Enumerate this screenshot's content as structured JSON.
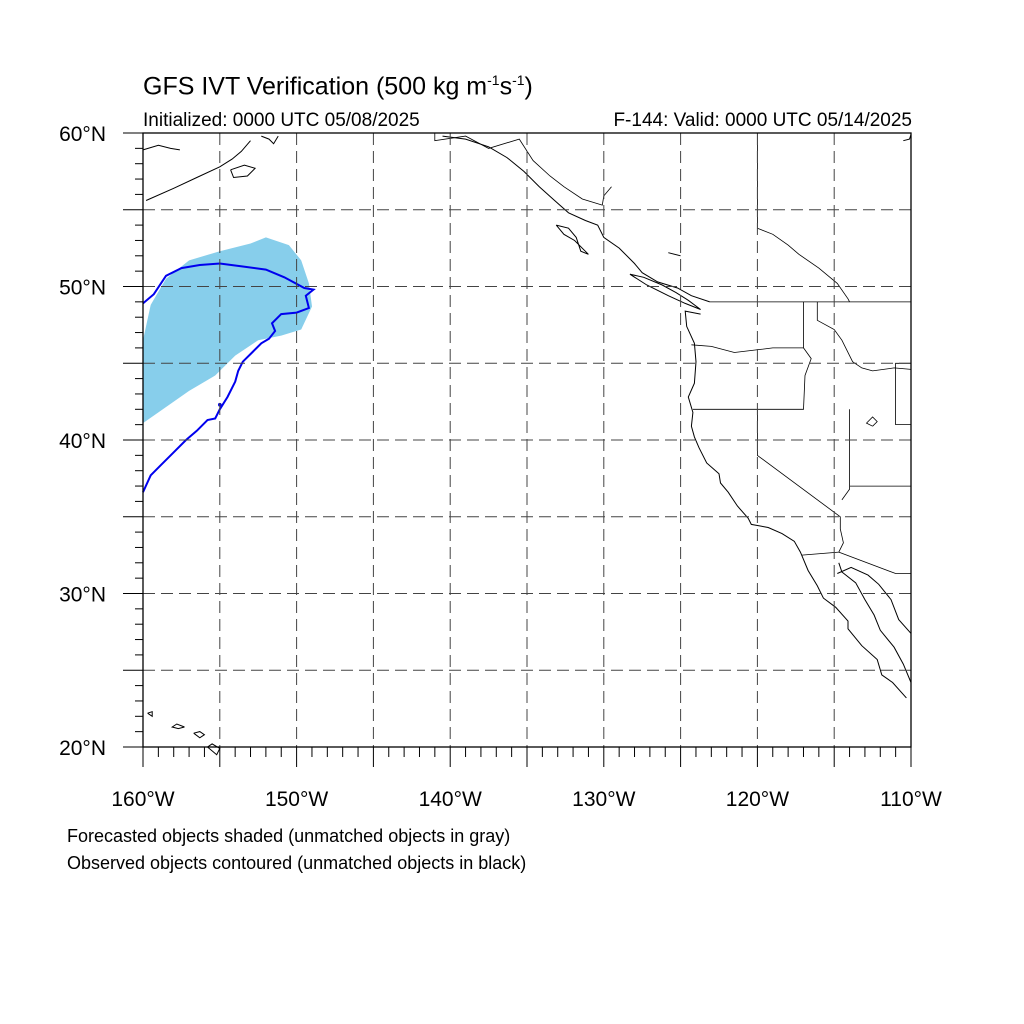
{
  "title": {
    "prefix": "GFS IVT Verification (500 kg m",
    "exp1": "-1",
    "mid": "s",
    "exp2": "-1",
    "suffix": ")"
  },
  "initialized": "Initialized: 0000 UTC 05/08/2025",
  "valid": "F-144: Valid: 0000 UTC 05/14/2025",
  "notes": [
    "Forecasted objects shaded (unmatched objects in gray)",
    "Observed objects contoured (unmatched objects in black)"
  ],
  "map": {
    "lon_range": [
      -160,
      -110
    ],
    "lat_range": [
      20,
      60
    ],
    "lon_labels": [
      {
        "lon": -160,
        "label": "160°W"
      },
      {
        "lon": -150,
        "label": "150°W"
      },
      {
        "lon": -140,
        "label": "140°W"
      },
      {
        "lon": -130,
        "label": "130°W"
      },
      {
        "lon": -120,
        "label": "120°W"
      },
      {
        "lon": -110,
        "label": "110°W"
      }
    ],
    "lat_labels": [
      {
        "lat": 60,
        "label": "60°N"
      },
      {
        "lat": 50,
        "label": "50°N"
      },
      {
        "lat": 40,
        "label": "40°N"
      },
      {
        "lat": 30,
        "label": "30°N"
      },
      {
        "lat": 20,
        "label": "20°N"
      }
    ],
    "grid_spacing_deg": 5,
    "grid_style": "dashed",
    "colors": {
      "forecast_fill": "#87ceeb",
      "observed_contour": "#0000ee",
      "coastline": "#000000"
    },
    "forecast_object": [
      [
        -160,
        46.5
      ],
      [
        -159.5,
        48.8
      ],
      [
        -158.5,
        50.5
      ],
      [
        -157,
        51.7
      ],
      [
        -155,
        52.3
      ],
      [
        -153,
        52.8
      ],
      [
        -152,
        53.2
      ],
      [
        -150.5,
        52.7
      ],
      [
        -149.7,
        51.7
      ],
      [
        -149.2,
        50.2
      ],
      [
        -149,
        48.7
      ],
      [
        -149.7,
        47.2
      ],
      [
        -151,
        46.8
      ],
      [
        -152.5,
        46.5
      ],
      [
        -154,
        45.5
      ],
      [
        -155.3,
        44.2
      ],
      [
        -157,
        43.2
      ],
      [
        -159,
        41.8
      ],
      [
        -160,
        41.1
      ]
    ],
    "observed_object": [
      [
        -160,
        48.9
      ],
      [
        -159.3,
        49.5
      ],
      [
        -158.5,
        50.7
      ],
      [
        -157.5,
        51.2
      ],
      [
        -156.3,
        51.4
      ],
      [
        -155,
        51.5
      ],
      [
        -153.5,
        51.3
      ],
      [
        -152,
        51.1
      ],
      [
        -150.8,
        50.6
      ],
      [
        -149.5,
        49.9
      ],
      [
        -148.9,
        49.8
      ],
      [
        -149.4,
        49.4
      ],
      [
        -149.2,
        48.6
      ],
      [
        -150,
        48.3
      ],
      [
        -151,
        48.2
      ],
      [
        -151.6,
        47.6
      ],
      [
        -151.4,
        47.1
      ],
      [
        -151.8,
        46.6
      ],
      [
        -152.3,
        46.3
      ],
      [
        -152.9,
        45.7
      ],
      [
        -153.5,
        45.1
      ],
      [
        -153.8,
        44.5
      ],
      [
        -154,
        43.8
      ],
      [
        -154.5,
        42.8
      ],
      [
        -155,
        42.0
      ],
      [
        -155.3,
        41.4
      ],
      [
        -155.8,
        41.3
      ],
      [
        -156.5,
        40.6
      ],
      [
        -157.2,
        40.0
      ],
      [
        -158,
        39.2
      ],
      [
        -158.8,
        38.4
      ],
      [
        -159.5,
        37.7
      ],
      [
        -160,
        36.6
      ]
    ],
    "observed_dot": [
      -155,
      42.3
    ],
    "coastlines": [
      [
        [
          -159.8,
          55.6
        ],
        [
          -158,
          56.4
        ],
        [
          -156.5,
          57.1
        ],
        [
          -155,
          57.8
        ],
        [
          -154.2,
          58.3
        ],
        [
          -153.6,
          58.8
        ],
        [
          -153,
          59.5
        ]
      ],
      [
        [
          -160,
          58.9
        ],
        [
          -159,
          59.2
        ],
        [
          -158.2,
          59.0
        ],
        [
          -157.6,
          58.9
        ]
      ],
      [
        [
          -154.3,
          57.6
        ],
        [
          -153.4,
          57.9
        ],
        [
          -152.7,
          57.7
        ],
        [
          -153.2,
          57.2
        ],
        [
          -154.1,
          57.1
        ],
        [
          -154.3,
          57.6
        ]
      ],
      [
        [
          -152.3,
          59.8
        ],
        [
          -151.8,
          59.6
        ],
        [
          -151.5,
          59.3
        ],
        [
          -151.2,
          59.8
        ]
      ],
      [
        [
          -140.5,
          59.8
        ],
        [
          -139,
          59.6
        ],
        [
          -137.5,
          59.1
        ],
        [
          -136.3,
          58.4
        ],
        [
          -135.2,
          57.5
        ],
        [
          -134.2,
          56.5
        ],
        [
          -133.2,
          55.6
        ],
        [
          -132.3,
          54.8
        ],
        [
          -131.2,
          54.3
        ],
        [
          -130.4,
          54.0
        ],
        [
          -130,
          53.2
        ],
        [
          -129,
          52.5
        ],
        [
          -128,
          51.5
        ],
        [
          -127.5,
          50.9
        ],
        [
          -126.5,
          50.3
        ],
        [
          -125.2,
          49.9
        ],
        [
          -124.3,
          49.4
        ],
        [
          -123.1,
          49.0
        ]
      ],
      [
        [
          -133.1,
          54.0
        ],
        [
          -132.3,
          53.8
        ],
        [
          -131.8,
          53.2
        ],
        [
          -131.5,
          52.3
        ],
        [
          -131,
          52.1
        ],
        [
          -131.9,
          53.0
        ],
        [
          -132.6,
          53.4
        ],
        [
          -133.1,
          54.0
        ]
      ],
      [
        [
          -128.3,
          50.8
        ],
        [
          -127.4,
          50.6
        ],
        [
          -126.2,
          50.1
        ],
        [
          -125.3,
          49.6
        ],
        [
          -124.5,
          49.1
        ],
        [
          -123.7,
          48.5
        ],
        [
          -124.7,
          48.9
        ],
        [
          -125.8,
          49.4
        ],
        [
          -127.2,
          50.1
        ],
        [
          -128.3,
          50.8
        ]
      ],
      [
        [
          -123.7,
          48.2
        ],
        [
          -124.7,
          48.4
        ],
        [
          -124.6,
          47.4
        ],
        [
          -124.1,
          46.3
        ],
        [
          -124,
          45.1
        ],
        [
          -124.1,
          43.7
        ],
        [
          -124.5,
          42.8
        ],
        [
          -124.2,
          41.8
        ],
        [
          -124.3,
          40.9
        ],
        [
          -124.1,
          40.2
        ],
        [
          -123.8,
          39.5
        ],
        [
          -123.3,
          38.5
        ],
        [
          -122.5,
          37.8
        ],
        [
          -122.4,
          37.2
        ],
        [
          -121.9,
          36.6
        ],
        [
          -121.3,
          35.7
        ],
        [
          -120.6,
          34.9
        ],
        [
          -120.4,
          34.5
        ],
        [
          -119.3,
          34.3
        ],
        [
          -118.4,
          33.9
        ],
        [
          -117.6,
          33.4
        ],
        [
          -117.2,
          32.7
        ],
        [
          -116.7,
          31.5
        ],
        [
          -116.1,
          30.5
        ],
        [
          -115.7,
          29.7
        ],
        [
          -114.9,
          29.1
        ],
        [
          -114.1,
          28.2
        ],
        [
          -114.1,
          27.7
        ],
        [
          -113.2,
          26.6
        ],
        [
          -112.2,
          25.7
        ],
        [
          -111.9,
          24.7
        ],
        [
          -111.2,
          24.2
        ],
        [
          -110.3,
          23.2
        ]
      ],
      [
        [
          -114.7,
          32.0
        ],
        [
          -114.5,
          31.4
        ],
        [
          -113.6,
          30.7
        ],
        [
          -113,
          29.6
        ],
        [
          -112.4,
          28.6
        ],
        [
          -112,
          27.6
        ],
        [
          -111.1,
          26.5
        ],
        [
          -110.5,
          25.4
        ],
        [
          -110,
          24.2
        ]
      ],
      [
        [
          -114.8,
          31.3
        ],
        [
          -113.9,
          31.7
        ],
        [
          -112.8,
          31.2
        ],
        [
          -112.1,
          30.6
        ],
        [
          -111.3,
          29.6
        ],
        [
          -110.8,
          28.3
        ],
        [
          -110,
          27.4
        ]
      ],
      [
        [
          -155.8,
          20.0
        ],
        [
          -155.2,
          19.5
        ],
        [
          -155,
          19.9
        ],
        [
          -155.5,
          20.2
        ],
        [
          -155.8,
          20.0
        ]
      ],
      [
        [
          -156.7,
          20.9
        ],
        [
          -156.3,
          20.6
        ],
        [
          -156.0,
          20.8
        ],
        [
          -156.3,
          21.0
        ],
        [
          -156.7,
          20.9
        ]
      ],
      [
        [
          -157.3,
          21.3
        ],
        [
          -157.8,
          21.5
        ],
        [
          -158.1,
          21.3
        ],
        [
          -157.7,
          21.2
        ],
        [
          -157.3,
          21.3
        ]
      ],
      [
        [
          -159.7,
          22.2
        ],
        [
          -159.4,
          22.0
        ],
        [
          -159.4,
          22.3
        ],
        [
          -159.7,
          22.2
        ]
      ],
      [
        [
          -110.5,
          59.5
        ],
        [
          -110.1,
          59.6
        ],
        [
          -110.0,
          59.9
        ]
      ],
      [
        [
          -125.8,
          52.2
        ],
        [
          -125.0,
          52.0
        ]
      ]
    ],
    "borders": [
      [
        [
          -141,
          60
        ],
        [
          -141,
          59.5
        ],
        [
          -139,
          59.8
        ],
        [
          -137.5,
          59.0
        ],
        [
          -135.5,
          59.6
        ],
        [
          -134.6,
          58.2
        ],
        [
          -133.5,
          57.2
        ],
        [
          -132.6,
          56.5
        ],
        [
          -131.4,
          55.7
        ],
        [
          -130.1,
          55.3
        ],
        [
          -130,
          55.9
        ],
        [
          -129.5,
          56.5
        ]
      ],
      [
        [
          -123.1,
          49
        ],
        [
          -110,
          49
        ]
      ],
      [
        [
          -124.3,
          46.2
        ],
        [
          -123,
          46.1
        ],
        [
          -121.5,
          45.7
        ],
        [
          -119.8,
          45.9
        ],
        [
          -119,
          46
        ],
        [
          -117,
          46
        ]
      ],
      [
        [
          -117,
          49
        ],
        [
          -117,
          46
        ],
        [
          -116.5,
          45.3
        ],
        [
          -116.9,
          44.2
        ],
        [
          -117,
          42
        ],
        [
          -124.2,
          42
        ]
      ],
      [
        [
          -116.1,
          49
        ],
        [
          -116.1,
          47.8
        ],
        [
          -115,
          47.2
        ],
        [
          -114.5,
          46.5
        ],
        [
          -113.8,
          45.1
        ],
        [
          -113.2,
          44.7
        ],
        [
          -112.5,
          44.5
        ],
        [
          -111.1,
          44.7
        ],
        [
          -110,
          44.6
        ]
      ],
      [
        [
          -120,
          42
        ],
        [
          -120,
          39
        ],
        [
          -114.6,
          35
        ],
        [
          -114.6,
          34.2
        ],
        [
          -114.4,
          33.3
        ],
        [
          -114.7,
          32.7
        ],
        [
          -117.1,
          32.5
        ]
      ],
      [
        [
          -114,
          42
        ],
        [
          -114,
          36.8
        ],
        [
          -114.5,
          36.1
        ]
      ],
      [
        [
          -114,
          37
        ],
        [
          -110,
          37
        ]
      ],
      [
        [
          -114.7,
          32.7
        ],
        [
          -111,
          31.3
        ],
        [
          -110,
          31.3
        ]
      ],
      [
        [
          -110,
          45
        ],
        [
          -111,
          45
        ],
        [
          -111,
          41
        ],
        [
          -110,
          41
        ]
      ],
      [
        [
          -120,
          60
        ],
        [
          -120,
          53.8
        ],
        [
          -119,
          53.4
        ],
        [
          -118,
          52.7
        ],
        [
          -117.3,
          52.1
        ],
        [
          -116,
          51.2
        ],
        [
          -114.8,
          50.2
        ],
        [
          -114.1,
          49.2
        ],
        [
          -114,
          49
        ]
      ],
      [
        [
          -112.5,
          40.9
        ],
        [
          -112.2,
          41.2
        ],
        [
          -112.5,
          41.5
        ],
        [
          -112.9,
          41.1
        ],
        [
          -112.5,
          40.9
        ]
      ]
    ]
  }
}
